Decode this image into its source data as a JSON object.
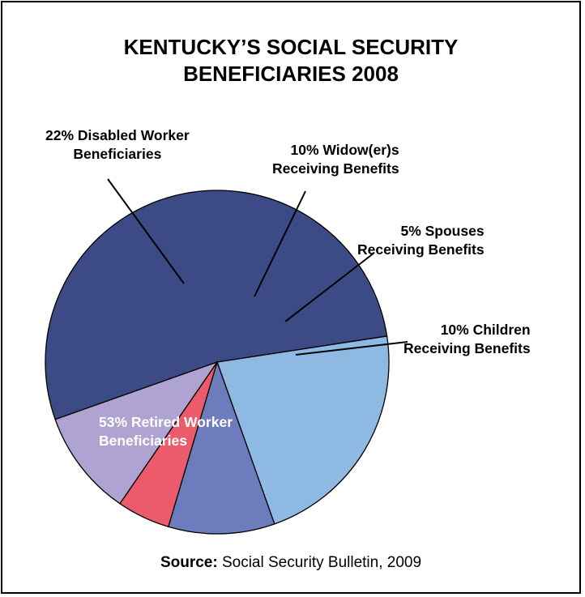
{
  "chart_data": {
    "type": "pie",
    "title": "KENTUCKY’S SOCIAL SECURITY BENEFICIARIES 2008",
    "title_lines": [
      "KENTUCKY’S SOCIAL SECURITY",
      "BENEFICIARIES 2008"
    ],
    "slices": [
      {
        "key": "retired",
        "value": 53,
        "color": "#3C4B86",
        "label_lines": [
          "53% Retired Worker",
          "Beneficiaries"
        ]
      },
      {
        "key": "disabled",
        "value": 22,
        "color": "#8DB9E2",
        "label_lines": [
          "22% Disabled Worker",
          "Beneficiaries"
        ]
      },
      {
        "key": "widowers",
        "value": 10,
        "color": "#6D7CBC",
        "label_lines": [
          "10% Widow(er)s",
          "Receiving Benefits"
        ]
      },
      {
        "key": "spouses",
        "value": 5,
        "color": "#EB5B6B",
        "label_lines": [
          "5% Spouses",
          "Receiving Benefits"
        ]
      },
      {
        "key": "children",
        "value": 10,
        "color": "#AFA4D1",
        "label_lines": [
          "10% Children",
          "Receiving Benefits"
        ]
      }
    ],
    "source_prefix": "Source:",
    "source_text": " Social Security Bulletin, 2009"
  }
}
